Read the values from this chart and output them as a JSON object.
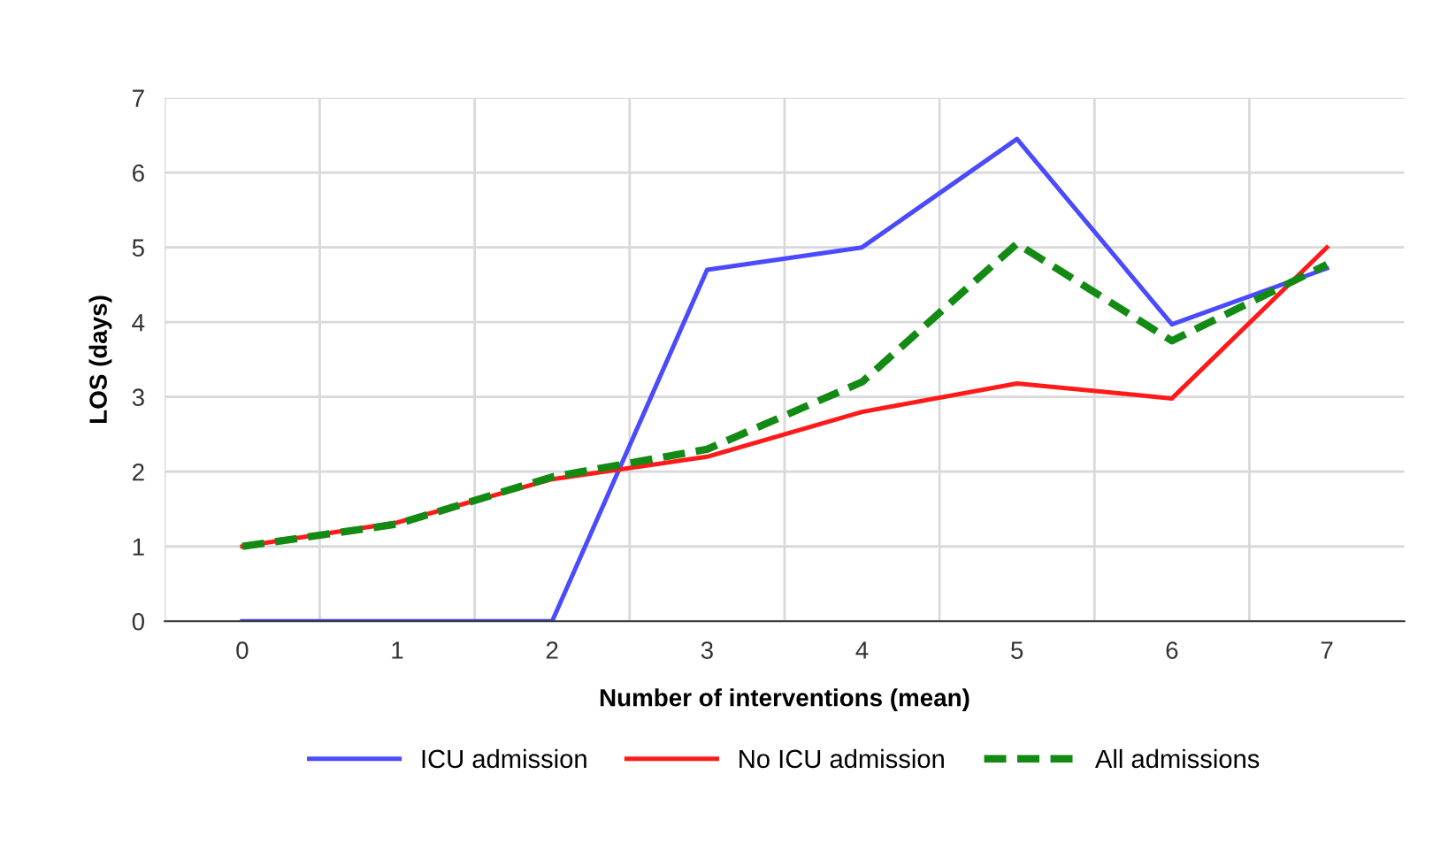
{
  "chart_data": {
    "type": "line",
    "xlabel": "Number of interventions (mean)",
    "ylabel": "LOS (days)",
    "categories": [
      "0",
      "1",
      "2",
      "3",
      "4",
      "5",
      "6",
      "7"
    ],
    "series": [
      {
        "name": "ICU admission",
        "color": "#4a4aff",
        "values": [
          0,
          0,
          0,
          4.7,
          5.0,
          6.45,
          3.97,
          4.72
        ]
      },
      {
        "name": "No ICU admission",
        "color": "#ff1a1a",
        "values": [
          1.0,
          1.32,
          1.9,
          2.2,
          2.8,
          3.18,
          2.98,
          5.0
        ]
      },
      {
        "name": "All admissions",
        "color": "#138a13",
        "line_style": "dashed",
        "values": [
          1.0,
          1.3,
          1.93,
          2.3,
          3.2,
          5.05,
          3.75,
          4.77
        ]
      }
    ],
    "ylim": [
      0,
      7
    ],
    "yticks": [
      0,
      1,
      2,
      3,
      4,
      5,
      6,
      7
    ],
    "grid": true,
    "legend": "bottom",
    "marker": "none"
  }
}
